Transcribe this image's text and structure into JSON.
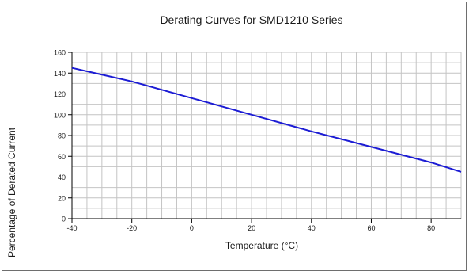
{
  "chart_data": {
    "type": "line",
    "title": "Derating Curves for SMD1210 Series",
    "xlabel": "Temperature (°C)",
    "ylabel": "Percentage of Derated Current",
    "xlim": [
      -40,
      90
    ],
    "ylim": [
      0,
      160
    ],
    "x_ticks": [
      -40,
      -20,
      0,
      20,
      40,
      60,
      80
    ],
    "y_ticks": [
      0,
      20,
      40,
      60,
      80,
      100,
      120,
      140,
      160
    ],
    "x_minor_step": 5,
    "y_minor_step": 10,
    "grid": true,
    "series": [
      {
        "color": "#1c1cd4",
        "x": [
          -40,
          -20,
          0,
          20,
          40,
          60,
          80,
          90
        ],
        "y": [
          145,
          132,
          116,
          100,
          84,
          69,
          54,
          45
        ]
      }
    ]
  }
}
